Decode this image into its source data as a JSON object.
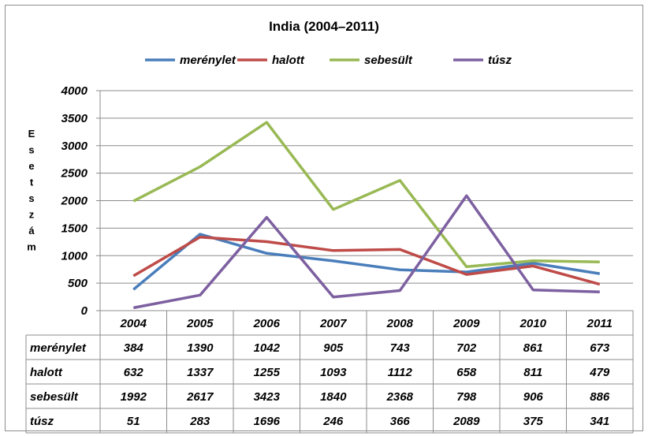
{
  "chart_data": {
    "type": "line",
    "title": "India (2004–2011)",
    "ylabel": "Esetszám",
    "ylim": [
      0,
      4000
    ],
    "yticks": [
      "0",
      "500",
      "1000",
      "1500",
      "2000",
      "2500",
      "3000",
      "3500",
      "4000"
    ],
    "grid": true,
    "legend_position": "top",
    "categories": [
      "2004",
      "2005",
      "2006",
      "2007",
      "2008",
      "2009",
      "2010",
      "2011"
    ],
    "series": [
      {
        "name": "merénylet",
        "color": "#4a7ebb",
        "values": [
          384,
          1390,
          1042,
          905,
          743,
          702,
          861,
          673
        ]
      },
      {
        "name": "halott",
        "color": "#be4b48",
        "values": [
          632,
          1337,
          1255,
          1093,
          1112,
          658,
          811,
          479
        ]
      },
      {
        "name": "sebesült",
        "color": "#98b954",
        "values": [
          1992,
          2617,
          3423,
          1840,
          2368,
          798,
          906,
          886
        ]
      },
      {
        "name": "túsz",
        "color": "#7d60a0",
        "values": [
          51,
          283,
          1696,
          246,
          366,
          2089,
          375,
          341
        ]
      }
    ]
  }
}
